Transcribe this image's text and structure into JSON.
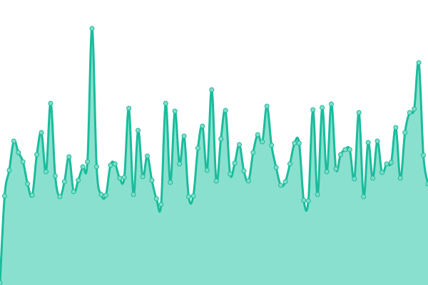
{
  "chart_data": {
    "type": "area",
    "title": "",
    "xlabel": "",
    "ylabel": "",
    "grid": false,
    "axes_visible": false,
    "legend": "none",
    "smooth": true,
    "markers": true,
    "xlim": [
      0,
      93
    ],
    "ylim": [
      0,
      400
    ],
    "x": [
      0,
      1,
      2,
      3,
      4,
      5,
      6,
      7,
      8,
      9,
      10,
      11,
      12,
      13,
      14,
      15,
      16,
      17,
      18,
      19,
      20,
      21,
      22,
      23,
      24,
      25,
      26,
      27,
      28,
      29,
      30,
      31,
      32,
      33,
      34,
      35,
      36,
      37,
      38,
      39,
      40,
      41,
      42,
      43,
      44,
      45,
      46,
      47,
      48,
      49,
      50,
      51,
      52,
      53,
      54,
      55,
      56,
      57,
      58,
      59,
      60,
      61,
      62,
      63,
      64,
      65,
      66,
      67,
      68,
      69,
      70,
      71,
      72,
      73,
      74,
      75,
      76,
      77,
      78,
      79,
      80,
      81,
      82,
      83,
      84,
      85,
      86,
      87,
      88,
      89,
      90,
      91,
      92,
      93
    ],
    "values": [
      3,
      125,
      161,
      202,
      186,
      173,
      142,
      126,
      183,
      214,
      159,
      255,
      153,
      124,
      145,
      180,
      131,
      147,
      166,
      173,
      360,
      166,
      127,
      126,
      168,
      170,
      150,
      151,
      248,
      127,
      217,
      152,
      181,
      147,
      121,
      113,
      255,
      144,
      244,
      170,
      209,
      124,
      125,
      192,
      223,
      161,
      274,
      146,
      205,
      245,
      156,
      171,
      197,
      160,
      146,
      186,
      211,
      201,
      251,
      196,
      165,
      140,
      145,
      170,
      199,
      199,
      119,
      118,
      246,
      127,
      249,
      159,
      254,
      163,
      183,
      190,
      190,
      149,
      242,
      124,
      200,
      150,
      202,
      158,
      170,
      172,
      221,
      150,
      214,
      242,
      247,
      312,
      182,
      142
    ],
    "colors": {
      "line": "#1abc9c",
      "fill": "#8ae0ce",
      "marker_fill": "#80dcc8",
      "marker_stroke": "#1abc9c"
    }
  }
}
